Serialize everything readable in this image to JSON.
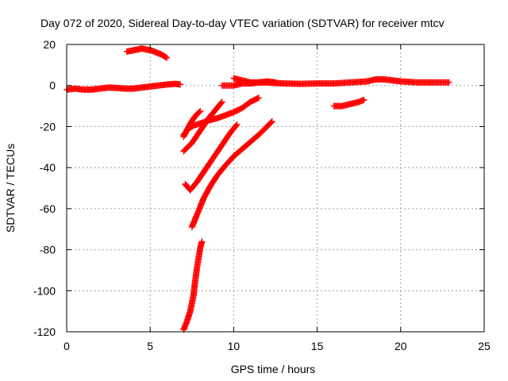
{
  "chart_data": {
    "type": "scatter",
    "title": "Day 072 of 2020, Sidereal Day-to-day VTEC variation (SDTVAR) for receiver mtcv",
    "xlabel": "GPS time / hours",
    "ylabel": "SDTVAR / TECUs",
    "xlim": [
      0,
      25
    ],
    "ylim": [
      -120,
      20
    ],
    "xticks": [
      "0",
      "5",
      "10",
      "15",
      "20",
      "25"
    ],
    "yticks": [
      "-120",
      "-100",
      "-80",
      "-60",
      "-40",
      "-20",
      "0",
      "20"
    ],
    "grid": true,
    "marker": "+",
    "color": "#ff0000",
    "series": [
      {
        "points": [
          [
            0,
            -2
          ],
          [
            0.5,
            -1.5
          ],
          [
            1,
            -2
          ],
          [
            1.5,
            -2
          ],
          [
            2,
            -1.5
          ],
          [
            2.5,
            -1
          ],
          [
            3,
            -1.2
          ],
          [
            3.5,
            -1.5
          ],
          [
            4,
            -1.5
          ],
          [
            4.5,
            -1
          ],
          [
            5,
            -0.5
          ],
          [
            5.5,
            0
          ],
          [
            6,
            0.5
          ],
          [
            6.5,
            0.8
          ],
          [
            6.8,
            0.5
          ]
        ]
      },
      {
        "points": [
          [
            3.6,
            16.5
          ],
          [
            3.9,
            17
          ],
          [
            4.2,
            17.5
          ],
          [
            4.5,
            18
          ],
          [
            4.8,
            17.5
          ],
          [
            5.1,
            17
          ],
          [
            5.4,
            16
          ],
          [
            5.7,
            15
          ],
          [
            6.0,
            13.5
          ]
        ]
      },
      {
        "points": [
          [
            9.3,
            0
          ],
          [
            10,
            0
          ],
          [
            10.5,
            1
          ],
          [
            11,
            1
          ],
          [
            11.5,
            1.5
          ],
          [
            12,
            1.5
          ],
          [
            12.5,
            1.2
          ],
          [
            13,
            1
          ],
          [
            14,
            0.8
          ],
          [
            15,
            1
          ],
          [
            16,
            1
          ],
          [
            17,
            1.5
          ],
          [
            18,
            2
          ],
          [
            18.5,
            3
          ],
          [
            19,
            3
          ],
          [
            19.5,
            2.5
          ],
          [
            20,
            2
          ],
          [
            21,
            1.5
          ],
          [
            22,
            1.5
          ],
          [
            22.9,
            1.5
          ]
        ]
      },
      {
        "points": [
          [
            10,
            3.5
          ],
          [
            10.5,
            2.5
          ],
          [
            11,
            1.5
          ],
          [
            11.5,
            1.5
          ],
          [
            12,
            2
          ],
          [
            12.5,
            1.5
          ]
        ]
      },
      {
        "points": [
          [
            16,
            -10
          ],
          [
            16.5,
            -10
          ],
          [
            17,
            -9
          ],
          [
            17.5,
            -8
          ],
          [
            17.8,
            -7
          ]
        ]
      },
      {
        "points": [
          [
            7.0,
            -24
          ],
          [
            7.3,
            -21
          ],
          [
            7.6,
            -19.5
          ],
          [
            8,
            -18.5
          ],
          [
            8.5,
            -17
          ],
          [
            9,
            -16
          ],
          [
            9.5,
            -14.5
          ],
          [
            10,
            -13
          ],
          [
            10.5,
            -11
          ],
          [
            11,
            -8
          ],
          [
            11.5,
            -6
          ]
        ]
      },
      {
        "points": [
          [
            7.0,
            -25
          ],
          [
            7.3,
            -20
          ],
          [
            7.6,
            -16
          ],
          [
            7.8,
            -14
          ],
          [
            8.0,
            -12.5
          ]
        ]
      },
      {
        "points": [
          [
            7.0,
            -32
          ],
          [
            7.5,
            -28
          ],
          [
            8,
            -22
          ],
          [
            8.5,
            -16
          ],
          [
            9,
            -11
          ],
          [
            9.3,
            -8
          ]
        ]
      },
      {
        "points": [
          [
            7.1,
            -48
          ],
          [
            7.4,
            -51
          ],
          [
            7.8,
            -47
          ],
          [
            8.3,
            -41
          ],
          [
            8.8,
            -35
          ],
          [
            9.3,
            -29
          ],
          [
            9.8,
            -23
          ],
          [
            10.2,
            -19
          ]
        ]
      },
      {
        "points": [
          [
            7.5,
            -69
          ],
          [
            7.8,
            -63
          ],
          [
            8.2,
            -55
          ],
          [
            8.6,
            -49
          ],
          [
            9,
            -44
          ],
          [
            9.5,
            -39
          ],
          [
            10,
            -34.5
          ],
          [
            10.5,
            -31
          ],
          [
            11,
            -27.5
          ],
          [
            11.5,
            -24
          ],
          [
            12,
            -20
          ],
          [
            12.3,
            -17.5
          ]
        ]
      },
      {
        "points": [
          [
            7.0,
            -119
          ],
          [
            7.2,
            -115
          ],
          [
            7.4,
            -110
          ],
          [
            7.6,
            -102
          ],
          [
            7.7,
            -95
          ],
          [
            7.8,
            -89
          ],
          [
            7.9,
            -84
          ],
          [
            8.0,
            -79
          ],
          [
            8.1,
            -76
          ]
        ]
      }
    ]
  }
}
